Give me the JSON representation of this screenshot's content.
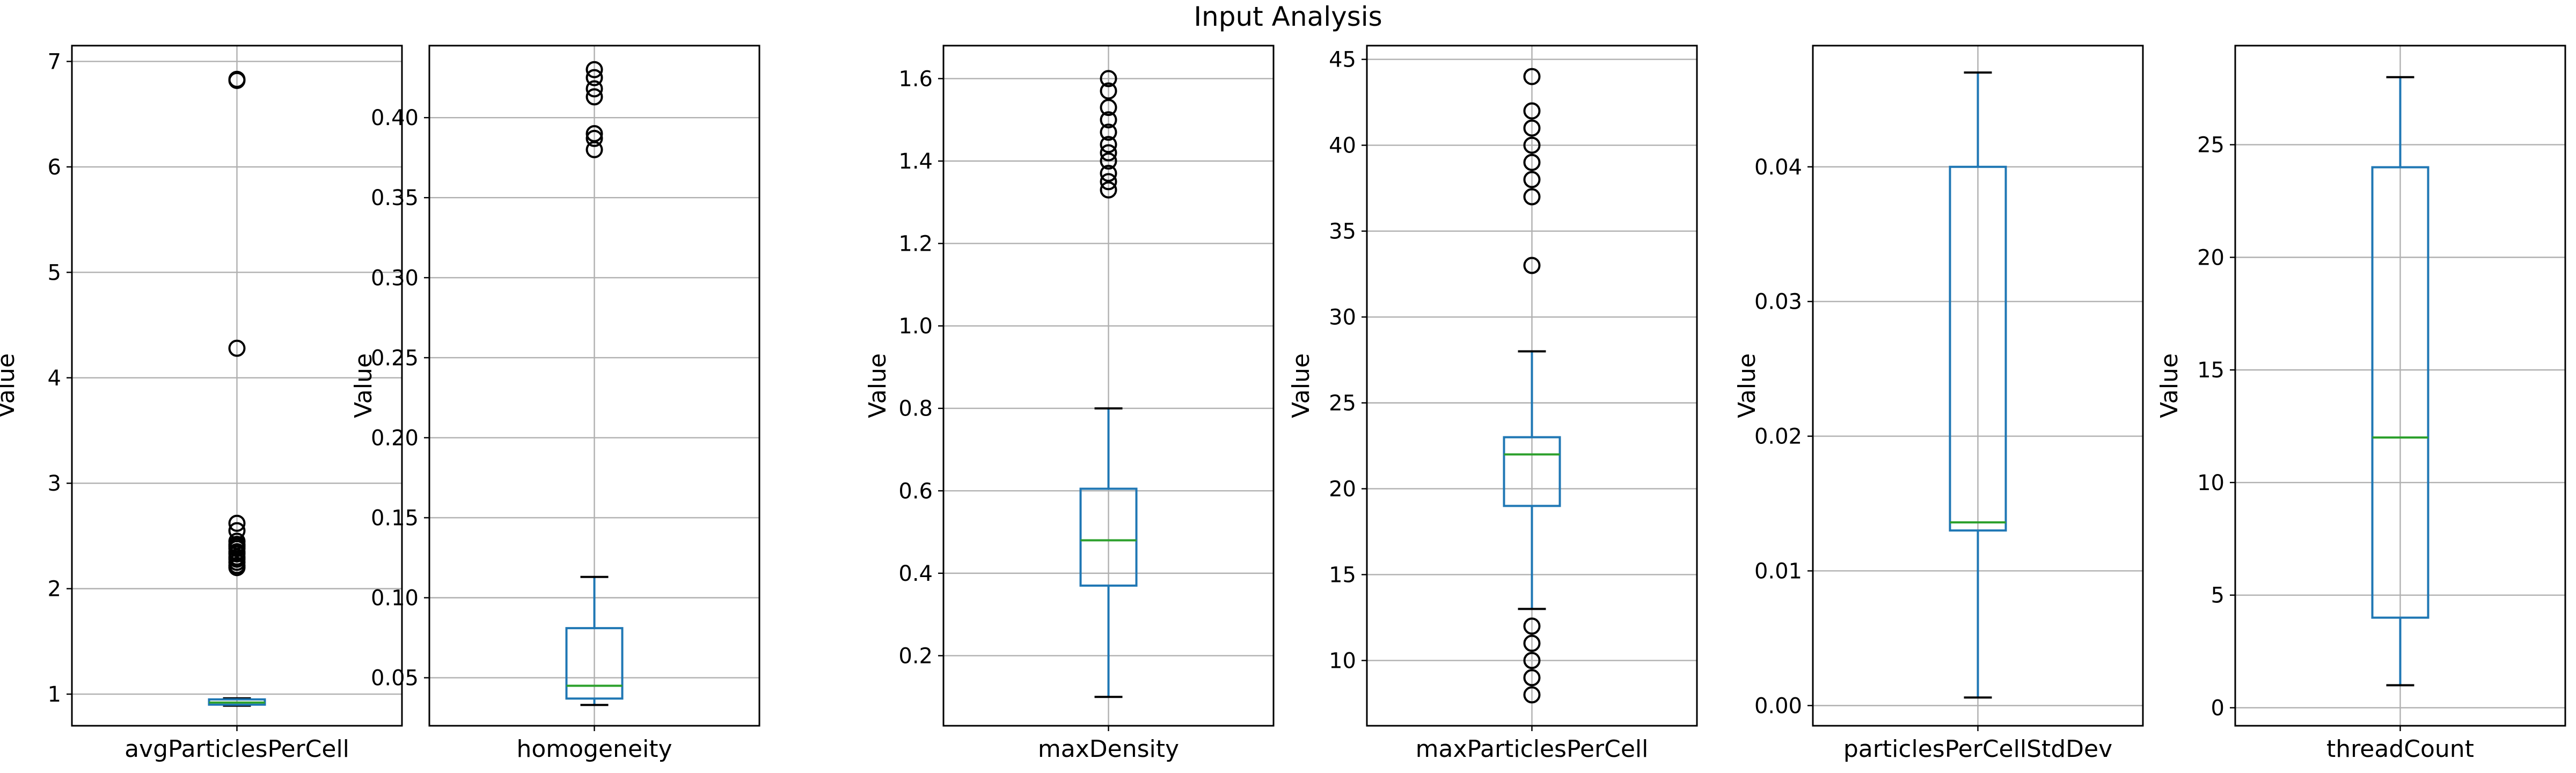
{
  "chart_data": {
    "type": "box",
    "title": "Input Analysis",
    "ylabel": "Value",
    "grid": true,
    "colors": {
      "box": "#1f77b4",
      "median": "#2ca02c",
      "grid": "#b0b0b0",
      "frame": "#000000",
      "flier": "#000000"
    },
    "panels": [
      {
        "label": "avgParticlesPerCell",
        "ylim": [
          0.7,
          7.15
        ],
        "yticks": [
          1,
          2,
          3,
          4,
          5,
          6,
          7
        ],
        "tick_labels": [
          "1",
          "2",
          "3",
          "4",
          "5",
          "6",
          "7"
        ],
        "whisker_low": 0.89,
        "q1": 0.9,
        "median": 0.92,
        "q3": 0.95,
        "whisker_high": 0.96,
        "fliers": [
          6.83,
          6.82,
          4.28,
          2.62,
          2.55,
          2.45,
          2.42,
          2.4,
          2.38,
          2.35,
          2.33,
          2.3,
          2.28,
          2.25,
          2.22,
          2.2
        ]
      },
      {
        "label": "homogeneity",
        "ylim": [
          0.02,
          0.445
        ],
        "yticks": [
          0.05,
          0.1,
          0.15,
          0.2,
          0.25,
          0.3,
          0.35,
          0.4
        ],
        "tick_labels": [
          "0.05",
          "0.10",
          "0.15",
          "0.20",
          "0.25",
          "0.30",
          "0.35",
          "0.40"
        ],
        "whisker_low": 0.033,
        "q1": 0.037,
        "median": 0.045,
        "q3": 0.081,
        "whisker_high": 0.113,
        "fliers": [
          0.43,
          0.425,
          0.418,
          0.413,
          0.39,
          0.387,
          0.38
        ]
      },
      {
        "label": "maxDensity",
        "ylim": [
          0.03,
          1.68
        ],
        "yticks": [
          0.2,
          0.4,
          0.6,
          0.8,
          1.0,
          1.2,
          1.4,
          1.6
        ],
        "tick_labels": [
          "0.2",
          "0.4",
          "0.6",
          "0.8",
          "1.0",
          "1.2",
          "1.4",
          "1.6"
        ],
        "whisker_low": 0.1,
        "q1": 0.37,
        "median": 0.48,
        "q3": 0.605,
        "whisker_high": 0.8,
        "fliers": [
          1.6,
          1.57,
          1.53,
          1.5,
          1.47,
          1.44,
          1.42,
          1.4,
          1.37,
          1.35,
          1.33
        ]
      },
      {
        "label": "maxParticlesPerCell",
        "ylim": [
          6.2,
          45.8
        ],
        "yticks": [
          10,
          15,
          20,
          25,
          30,
          35,
          40,
          45
        ],
        "tick_labels": [
          "10",
          "15",
          "20",
          "25",
          "30",
          "35",
          "40",
          "45"
        ],
        "whisker_low": 13,
        "q1": 19,
        "median": 22,
        "q3": 23,
        "whisker_high": 28,
        "fliers": [
          44,
          42,
          41,
          40,
          39,
          38,
          37,
          33,
          12,
          11,
          10,
          9,
          8
        ]
      },
      {
        "label": "particlesPerCellStdDev",
        "ylim": [
          -0.0015,
          0.049
        ],
        "yticks": [
          0.0,
          0.01,
          0.02,
          0.03,
          0.04
        ],
        "tick_labels": [
          "0.00",
          "0.01",
          "0.02",
          "0.03",
          "0.04"
        ],
        "whisker_low": 0.0006,
        "q1": 0.013,
        "median": 0.0136,
        "q3": 0.04,
        "whisker_high": 0.047,
        "fliers": []
      },
      {
        "label": "threadCount",
        "ylim": [
          -0.8,
          29.4
        ],
        "yticks": [
          0,
          5,
          10,
          15,
          20,
          25
        ],
        "tick_labels": [
          "0",
          "5",
          "10",
          "15",
          "20",
          "25"
        ],
        "whisker_low": 1,
        "q1": 4,
        "median": 12,
        "q3": 24,
        "whisker_high": 28,
        "fliers": []
      }
    ]
  }
}
